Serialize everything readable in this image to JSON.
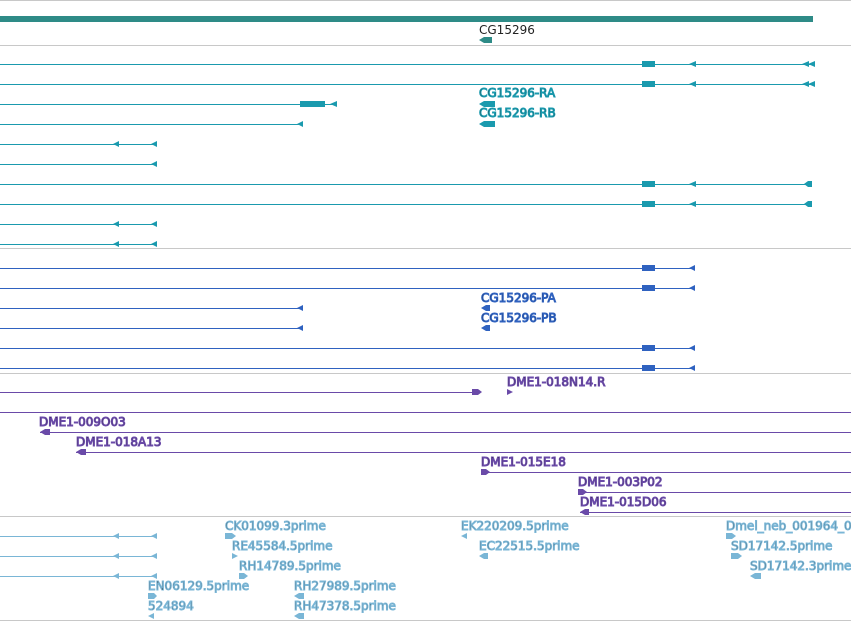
{
  "colors": {
    "gene": "#2e8b87",
    "transcript": "#1a9aae",
    "cds": "#2f62c0",
    "cdna": "#6a4aa8",
    "est": "#7ab6d6",
    "divider": "#c8c8c8"
  },
  "gene_track": {
    "label": "CG15296"
  },
  "transcript_track": {
    "labels": [
      "CG15296-RA",
      "CG15296-RB"
    ]
  },
  "protein_track": {
    "labels": [
      "CG15296-PA",
      "CG15296-PB"
    ]
  },
  "cdna_track": {
    "labels": [
      "DME1-018N14.R",
      "DME1-009O03",
      "DME1-018A13",
      "DME1-015E18",
      "DME1-003P02",
      "DME1-015D06"
    ]
  },
  "est_track": {
    "labels": [
      "CK01099.3prime",
      "RE45584.5prime",
      "RH14789.5prime",
      "EN06129.5prime",
      "524894",
      "RH27989.5prime",
      "RH47378.5prime",
      "EK220209.5prime",
      "EC22515.5prime",
      "Dmel_neb_001964_0",
      "SD17142.5prime",
      "SD17142.3prime"
    ]
  }
}
